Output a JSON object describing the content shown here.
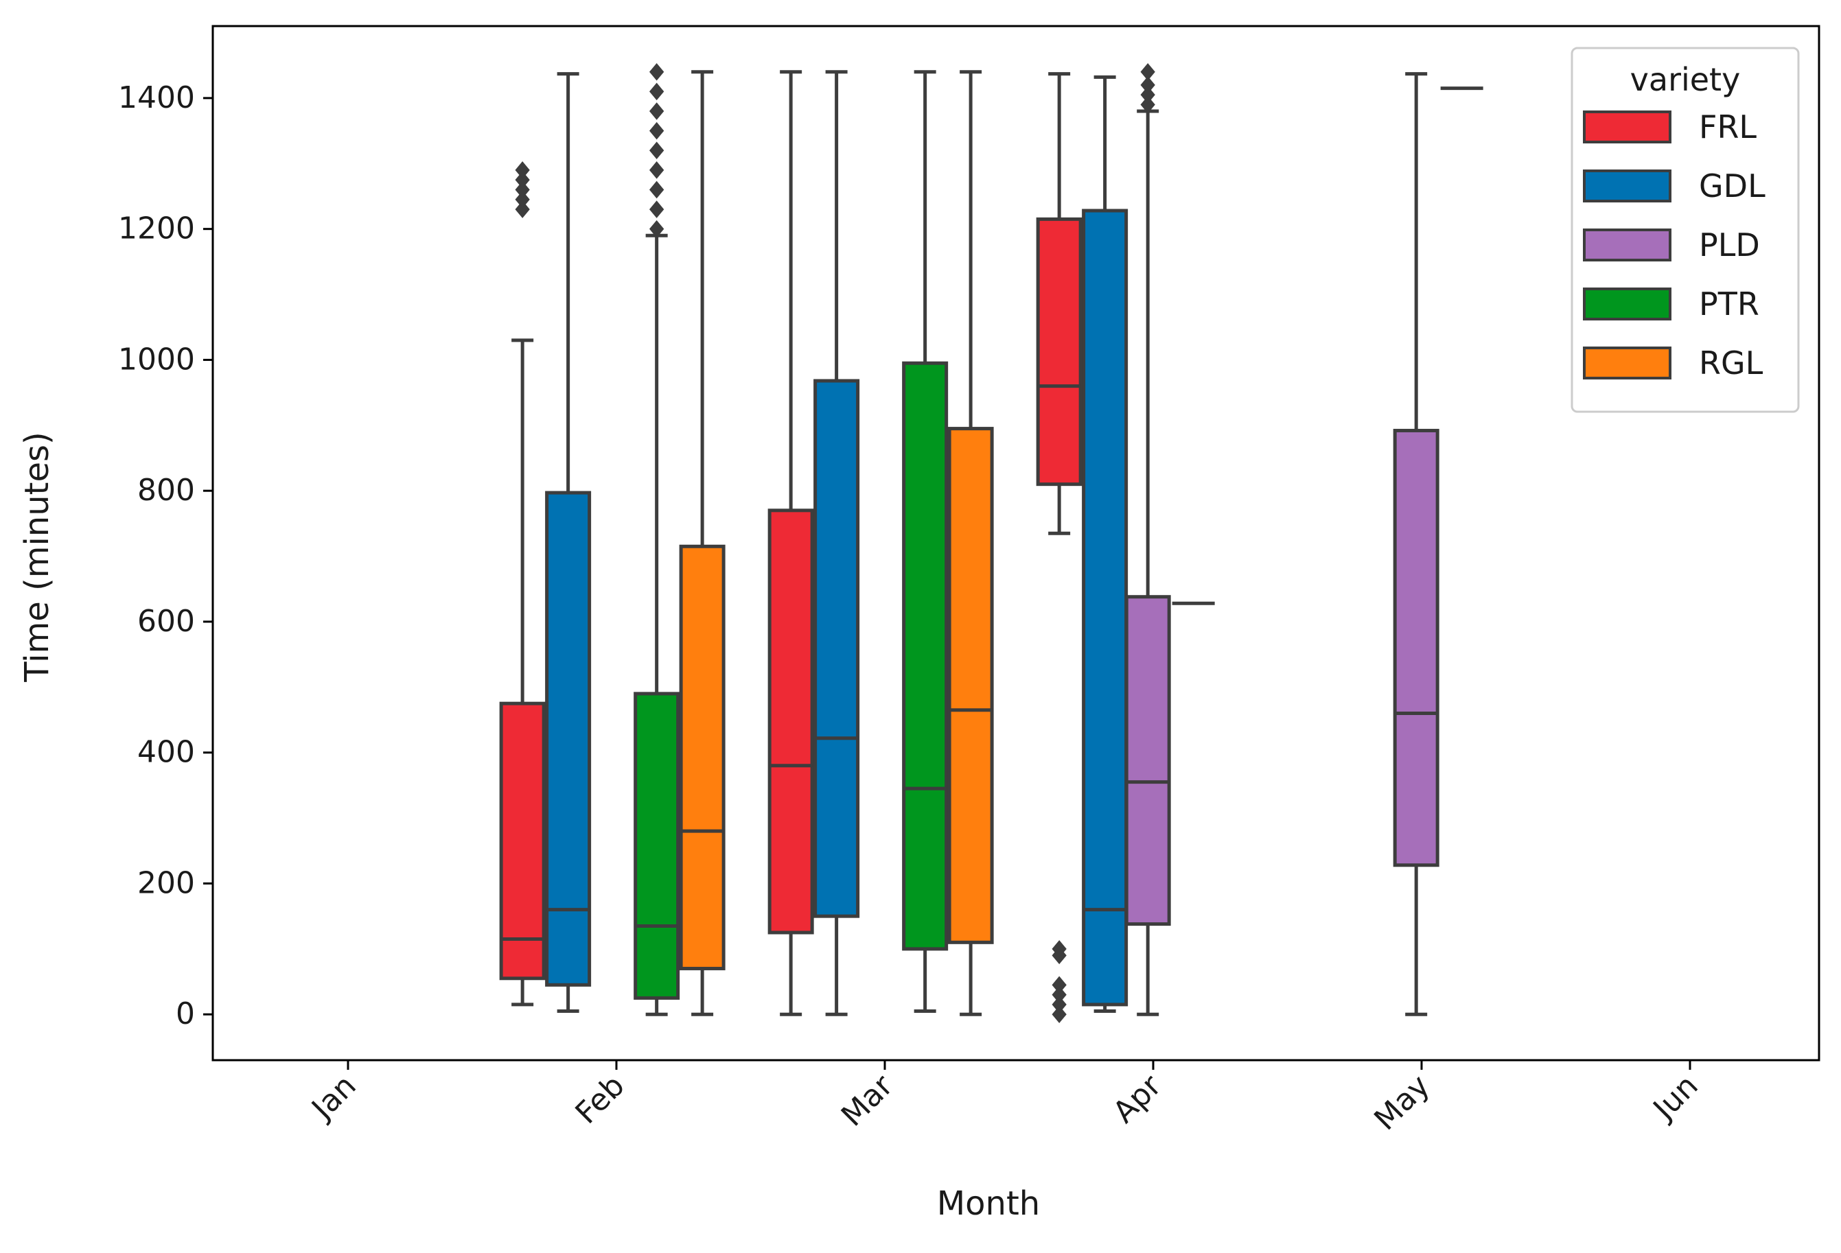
{
  "chart_data": {
    "type": "box",
    "title": "",
    "xlabel": "Month",
    "ylabel": "Time (minutes)",
    "ylim": [
      -70,
      1510
    ],
    "yticks": [
      0,
      200,
      400,
      600,
      800,
      1000,
      1200,
      1400
    ],
    "categories": [
      "Jan",
      "Feb",
      "Mar",
      "Apr",
      "May",
      "Jun"
    ],
    "grid": false,
    "legend": {
      "title": "variety",
      "placement": "top-right",
      "entries": [
        {
          "name": "FRL",
          "color": "#ee2a35"
        },
        {
          "name": "GDL",
          "color": "#0072b2"
        },
        {
          "name": "PLD",
          "color": "#a66fba"
        },
        {
          "name": "PTR",
          "color": "#00961e"
        },
        {
          "name": "RGL",
          "color": "#ff7f0e"
        }
      ]
    },
    "boxes": [
      {
        "month_index": 0.65,
        "series": "FRL",
        "whislo": 15,
        "q1": 55,
        "med": 115,
        "q3": 475,
        "whishi": 1030,
        "fliers": [
          1230,
          1245,
          1260,
          1275,
          1290
        ]
      },
      {
        "month_index": 0.82,
        "series": "GDL",
        "whislo": 5,
        "q1": 45,
        "med": 160,
        "q3": 797,
        "whishi": 1437,
        "fliers": []
      },
      {
        "month_index": 1.15,
        "series": "PTR",
        "whislo": 0,
        "q1": 25,
        "med": 135,
        "q3": 490,
        "whishi": 1190,
        "fliers": [
          1200,
          1230,
          1260,
          1290,
          1320,
          1350,
          1380,
          1410,
          1440
        ]
      },
      {
        "month_index": 1.32,
        "series": "RGL",
        "whislo": 0,
        "q1": 70,
        "med": 280,
        "q3": 715,
        "whishi": 1440,
        "fliers": []
      },
      {
        "month_index": 1.65,
        "series": "FRL",
        "whislo": 0,
        "q1": 125,
        "med": 380,
        "q3": 770,
        "whishi": 1440,
        "fliers": []
      },
      {
        "month_index": 1.82,
        "series": "GDL",
        "whislo": 0,
        "q1": 150,
        "med": 422,
        "q3": 968,
        "whishi": 1440,
        "fliers": []
      },
      {
        "month_index": 2.15,
        "series": "PTR",
        "whislo": 5,
        "q1": 100,
        "med": 345,
        "q3": 995,
        "whishi": 1440,
        "fliers": []
      },
      {
        "month_index": 2.32,
        "series": "RGL",
        "whislo": 0,
        "q1": 110,
        "med": 465,
        "q3": 895,
        "whishi": 1440,
        "fliers": []
      },
      {
        "month_index": 2.65,
        "series": "FRL",
        "whislo": 735,
        "q1": 810,
        "med": 960,
        "q3": 1215,
        "whishi": 1437,
        "fliers": [
          0,
          15,
          30,
          45,
          90,
          100
        ]
      },
      {
        "month_index": 2.82,
        "series": "GDL",
        "whislo": 5,
        "q1": 15,
        "med": 160,
        "q3": 1228,
        "whishi": 1432,
        "fliers": []
      },
      {
        "month_index": 2.98,
        "series": "PLD",
        "whislo": 0,
        "q1": 138,
        "med": 355,
        "q3": 638,
        "whishi": 1380,
        "fliers": [
          1390,
          1405,
          1420,
          1440
        ]
      },
      {
        "month_index": 3.15,
        "series": "PTR",
        "whislo": 628,
        "q1": 628,
        "med": 628,
        "q3": 628,
        "whishi": 628,
        "fliers": []
      },
      {
        "month_index": 3.98,
        "series": "PLD",
        "whislo": 0,
        "q1": 228,
        "med": 460,
        "q3": 892,
        "whishi": 1437,
        "fliers": []
      },
      {
        "month_index": 4.15,
        "series": "RGL",
        "whislo": 1415,
        "q1": 1415,
        "med": 1415,
        "q3": 1415,
        "whishi": 1415,
        "fliers": []
      }
    ]
  }
}
